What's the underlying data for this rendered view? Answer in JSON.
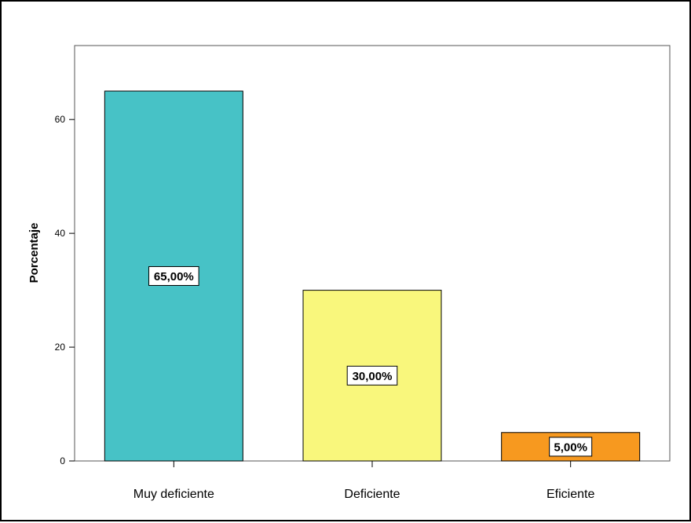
{
  "chart_data": {
    "type": "bar",
    "title": "",
    "xlabel": "",
    "ylabel": "Porcentaje",
    "ylim": [
      0,
      73
    ],
    "yticks": [
      0,
      20,
      40,
      60
    ],
    "categories": [
      "Muy deficiente",
      "Deficiente",
      "Eficiente"
    ],
    "values": [
      65,
      30,
      5
    ],
    "data_labels": [
      "65,00%",
      "30,00%",
      "5,00%"
    ],
    "colors": [
      "#47c2c6",
      "#f9f77c",
      "#f7991f"
    ],
    "grid": false,
    "legend": "none"
  }
}
